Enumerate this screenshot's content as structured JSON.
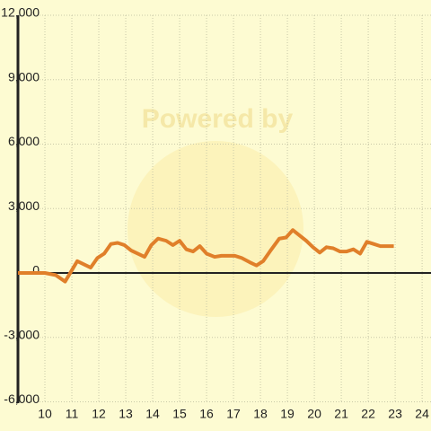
{
  "chart_data": {
    "type": "line",
    "watermark": "Powered by",
    "x": [
      9.0,
      10.0,
      10.4,
      10.75,
      11.2,
      11.7,
      11.95,
      12.2,
      12.45,
      12.7,
      12.95,
      13.2,
      13.7,
      13.95,
      14.2,
      14.5,
      14.75,
      15.0,
      15.25,
      15.5,
      15.75,
      16.0,
      16.3,
      16.55,
      17.05,
      17.3,
      17.6,
      17.85,
      18.1,
      18.35,
      18.7,
      18.95,
      19.2,
      19.45,
      19.7,
      19.95,
      20.2,
      20.45,
      20.7,
      20.95,
      21.2,
      21.45,
      21.7,
      21.95,
      22.2,
      22.45,
      22.95
    ],
    "series": [
      {
        "color": "#e07f2a",
        "values": [
          0,
          0,
          -100,
          -400,
          550,
          250,
          700,
          900,
          1350,
          1400,
          1300,
          1050,
          750,
          1300,
          1600,
          1500,
          1300,
          1500,
          1100,
          1000,
          1250,
          900,
          750,
          800,
          800,
          700,
          500,
          350,
          550,
          1000,
          1600,
          1650,
          2000,
          1750,
          1500,
          1200,
          950,
          1200,
          1150,
          1000,
          1000,
          1100,
          900,
          1450,
          1350,
          1250,
          1250
        ]
      }
    ],
    "xlim": [
      9,
      24.33
    ],
    "ylim": [
      -6000,
      12000
    ],
    "xticks": [
      10,
      11,
      12,
      13,
      14,
      15,
      16,
      17,
      18,
      19,
      20,
      21,
      22,
      23,
      24
    ],
    "yticks": [
      {
        "value": -6000,
        "label": "-6,000"
      },
      {
        "value": -3000,
        "label": "-3,000"
      },
      0,
      {
        "value": 3000,
        "label": "3,000"
      },
      {
        "value": 6000,
        "label": "6,000"
      },
      {
        "value": 9000,
        "label": "9,000"
      },
      {
        "value": 12000,
        "label": "12,000"
      }
    ],
    "grid": true
  }
}
